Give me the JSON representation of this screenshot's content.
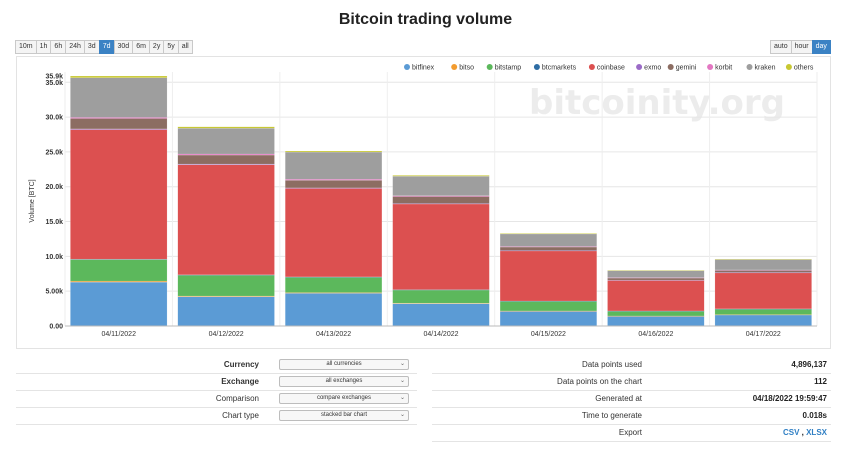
{
  "page": {
    "title": "Bitcoin trading volume"
  },
  "range_buttons": [
    "10m",
    "1h",
    "6h",
    "24h",
    "3d",
    "7d",
    "30d",
    "6m",
    "2y",
    "5y",
    "all"
  ],
  "range_active": "7d",
  "resolution_buttons": [
    "auto",
    "hour",
    "day"
  ],
  "resolution_active": "day",
  "watermark": "bitcoinity.org",
  "chart_data": {
    "type": "bar",
    "stacked": true,
    "title": "Bitcoin trading volume",
    "xlabel": "",
    "ylabel": "Volume [BTC]",
    "ylim": [
      0,
      35900
    ],
    "yticks": [
      0,
      5000,
      10000,
      15000,
      20000,
      25000,
      30000,
      35000
    ],
    "ytick_labels": [
      "0.00",
      "5.00k",
      "10.0k",
      "15.0k",
      "20.0k",
      "25.0k",
      "30.0k",
      "35.0k"
    ],
    "max_label": "35.9k",
    "categories": [
      "04/11/2022",
      "04/12/2022",
      "04/13/2022",
      "04/14/2022",
      "04/15/2022",
      "04/16/2022",
      "04/17/2022"
    ],
    "legend_position": "top-right",
    "series": [
      {
        "name": "bitfinex",
        "color": "#5b9bd5",
        "values": [
          6300,
          4200,
          4700,
          3200,
          2100,
          1400,
          1600
        ]
      },
      {
        "name": "bitso",
        "color": "#f39c2f",
        "values": [
          150,
          100,
          100,
          80,
          60,
          40,
          40
        ]
      },
      {
        "name": "bitstamp",
        "color": "#5cb85c",
        "values": [
          3100,
          3000,
          2200,
          1900,
          1400,
          700,
          800
        ]
      },
      {
        "name": "btcmarkets",
        "color": "#2e6da4",
        "values": [
          50,
          50,
          50,
          40,
          30,
          20,
          20
        ]
      },
      {
        "name": "coinbase",
        "color": "#dc5050",
        "values": [
          18600,
          15800,
          12700,
          12300,
          7200,
          4400,
          5200
        ]
      },
      {
        "name": "exmo",
        "color": "#9b6bc7",
        "values": [
          100,
          100,
          80,
          70,
          50,
          30,
          30
        ]
      },
      {
        "name": "gemini",
        "color": "#8c6d62",
        "values": [
          1500,
          1300,
          1100,
          1000,
          500,
          300,
          300
        ]
      },
      {
        "name": "korbit",
        "color": "#e377c2",
        "values": [
          150,
          150,
          150,
          120,
          80,
          60,
          60
        ]
      },
      {
        "name": "kraken",
        "color": "#9e9e9e",
        "values": [
          5700,
          3700,
          3900,
          2800,
          1800,
          1000,
          1500
        ]
      },
      {
        "name": "others",
        "color": "#c8c832",
        "values": [
          250,
          200,
          150,
          120,
          80,
          60,
          60
        ]
      }
    ]
  },
  "controls": [
    {
      "label": "Currency",
      "bold": true,
      "value": "all currencies"
    },
    {
      "label": "Exchange",
      "bold": true,
      "value": "all exchanges"
    },
    {
      "label": "Comparison",
      "bold": false,
      "value": "compare exchanges"
    },
    {
      "label": "Chart type",
      "bold": false,
      "value": "stacked bar chart"
    }
  ],
  "stats": [
    {
      "label": "Data points used",
      "value": "4,896,137"
    },
    {
      "label": "Data points on the chart",
      "value": "112"
    },
    {
      "label": "Generated at",
      "value": "04/18/2022 19:59:47"
    },
    {
      "label": "Time to generate",
      "value": "0.018s"
    }
  ],
  "export": {
    "label": "Export",
    "csv": "CSV",
    "separator": " , ",
    "xlsx": "XLSX"
  },
  "icons": {
    "dropdown": "chevron-down-icon"
  }
}
